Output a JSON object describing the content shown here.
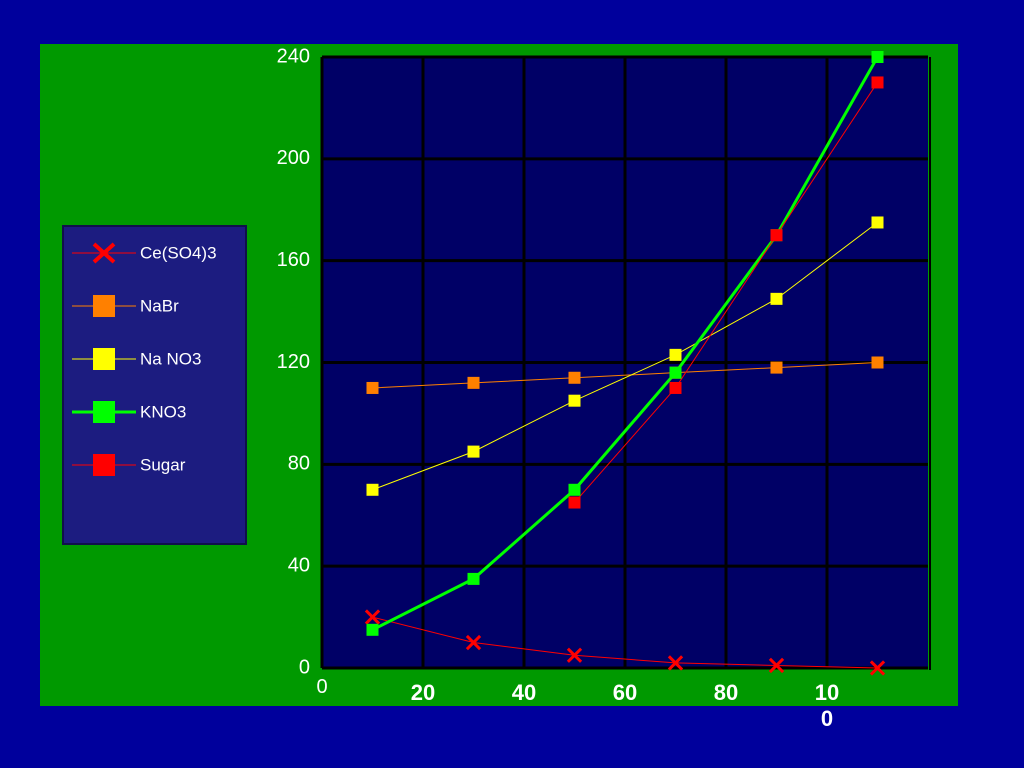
{
  "chart_data": {
    "type": "line",
    "x": [
      10,
      30,
      50,
      70,
      90,
      110
    ],
    "xlim": [
      0,
      120
    ],
    "xticks": [
      0,
      20,
      40,
      60,
      80,
      100
    ],
    "ylim": [
      0,
      240
    ],
    "yticks": [
      0,
      40,
      80,
      120,
      160,
      200,
      240
    ],
    "grid": true,
    "legend": "left",
    "series": [
      {
        "name": "Ce(SO4)3",
        "color": "#ff0000",
        "marker": "x",
        "line_width": 1,
        "values": [
          20,
          10,
          5,
          2,
          1,
          0
        ]
      },
      {
        "name": "NaBr",
        "color": "#ff8000",
        "marker": "square",
        "line_width": 1,
        "values": [
          110,
          112,
          114,
          116,
          118,
          120
        ]
      },
      {
        "name": "Na NO3",
        "color": "#ffff00",
        "marker": "square",
        "line_width": 1,
        "values": [
          70,
          85,
          105,
          123,
          145,
          175
        ]
      },
      {
        "name": "KNO3",
        "color": "#00ff00",
        "marker": "square",
        "line_width": 3,
        "values": [
          15,
          35,
          70,
          116,
          170,
          240
        ]
      },
      {
        "name": "Sugar",
        "color": "#ff0000",
        "marker": "square",
        "line_width": 1,
        "values": [
          null,
          null,
          65,
          110,
          170,
          230
        ]
      }
    ]
  }
}
